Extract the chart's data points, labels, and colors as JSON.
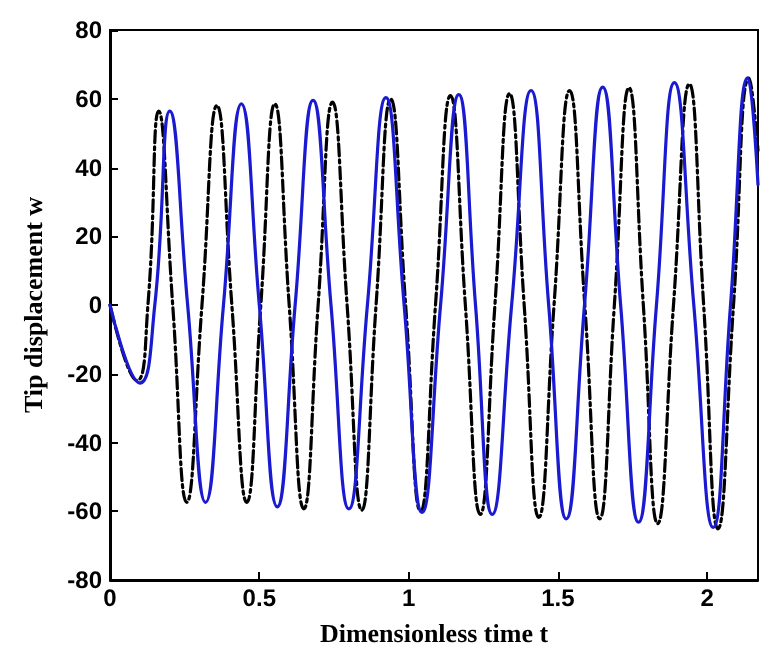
{
  "chart_data": {
    "type": "line",
    "xlabel": "Dimensionless time t",
    "ylabel": "Tip displacement w",
    "xlim": [
      0,
      2.17
    ],
    "xticks": [
      0,
      0.5,
      1,
      1.5,
      2
    ],
    "ylim": [
      -80,
      80
    ],
    "yticks": [
      -80,
      -60,
      -40,
      -20,
      0,
      20,
      40,
      60,
      80
    ],
    "grid": false,
    "marker": "none",
    "series": [
      {
        "color": "#1a1ad0",
        "line_style": "solid",
        "x": [
          0,
          0.1,
          0.15,
          0.2,
          0.26,
          0.32,
          0.38,
          0.44,
          0.5,
          0.56,
          0.62,
          0.68,
          0.74,
          0.8,
          0.862,
          0.924,
          0.985,
          1.045,
          1.107,
          1.168,
          1.224,
          1.28,
          1.345,
          1.41,
          1.469,
          1.528,
          1.589,
          1.65,
          1.71,
          1.77,
          1.83,
          1.89,
          1.955,
          2.02,
          2.078,
          2.136,
          2.17
        ],
        "values": [
          0,
          -22.7,
          0,
          56.4,
          0,
          -57.4,
          0,
          58.5,
          0,
          -58.7,
          0,
          59.5,
          0,
          -59.3,
          0,
          60.3,
          0,
          -60.3,
          0,
          61.2,
          0,
          -60.9,
          0,
          62.4,
          0,
          -62.2,
          0,
          63.4,
          0,
          -63.2,
          0,
          64.7,
          0,
          -64.7,
          0,
          66.1,
          35
        ]
      },
      {
        "color": "#000000",
        "line_style": "dashed",
        "x": [
          0,
          0.09,
          0.127,
          0.163,
          0.21,
          0.257,
          0.308,
          0.358,
          0.408,
          0.458,
          0.505,
          0.552,
          0.6,
          0.649,
          0.697,
          0.745,
          0.794,
          0.843,
          0.891,
          0.94,
          0.99,
          1.04,
          1.09,
          1.14,
          1.19,
          1.24,
          1.289,
          1.338,
          1.387,
          1.436,
          1.487,
          1.539,
          1.59,
          1.64,
          1.689,
          1.738,
          1.786,
          1.834,
          1.887,
          1.94,
          1.988,
          2.036,
          2.088,
          2.14,
          2.17
        ],
        "values": [
          0,
          -22,
          0,
          56.4,
          0,
          -57.4,
          0,
          58,
          0,
          -57.4,
          0,
          58.5,
          0,
          -59.3,
          0,
          59,
          0,
          -59.7,
          0,
          59.9,
          0,
          -60,
          0,
          60.9,
          0,
          -60.9,
          0,
          61.5,
          0,
          -61.8,
          0,
          62.4,
          0,
          -62.2,
          0,
          63.2,
          0,
          -63.6,
          0,
          64.3,
          0,
          -65.1,
          0,
          66,
          45
        ]
      }
    ]
  }
}
